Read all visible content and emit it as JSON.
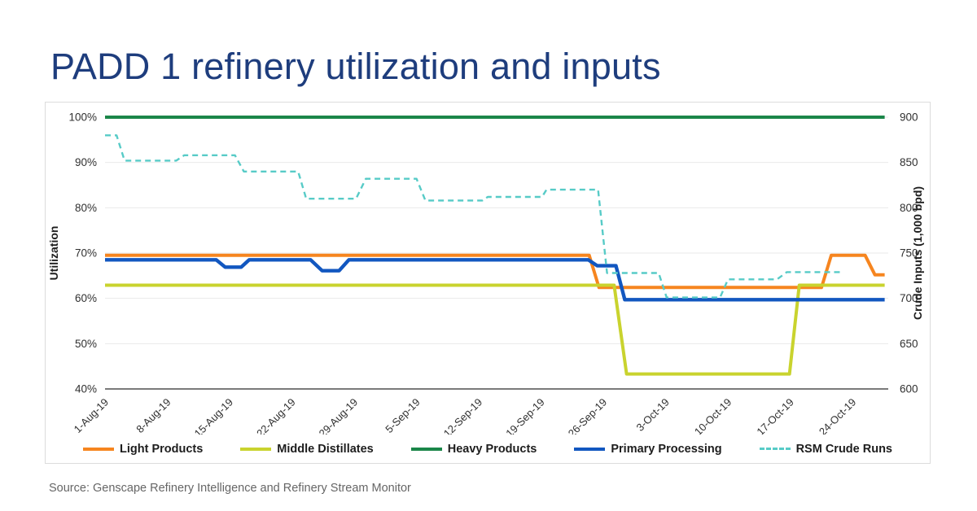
{
  "page": {
    "title": "PADD 1 refinery utilization and inputs",
    "source": "Source: Genscape Refinery Intelligence and Refinery Stream Monitor"
  },
  "colors": {
    "title": "#1E3D7D",
    "grid": "#EAEAEA",
    "axis_line": "#2B2B2B",
    "tick_text": "#303030",
    "axis_title_text": "#1d1d1d",
    "source_text": "#666666",
    "panel_border": "#DCDCDC"
  },
  "chart_data": {
    "type": "line",
    "title": "PADD 1 refinery utilization and inputs",
    "grid": "horizontal",
    "legend_position": "bottom",
    "x_unit": "days since 1-Aug-2019",
    "x_axis": {
      "xlim": [
        0,
        88
      ],
      "tick_days": [
        0,
        7,
        14,
        21,
        28,
        35,
        42,
        49,
        56,
        63,
        70,
        77,
        84
      ],
      "tick_labels": [
        "1-Aug-19",
        "8-Aug-19",
        "15-Aug-19",
        "22-Aug-19",
        "29-Aug-19",
        "5-Sep-19",
        "12-Sep-19",
        "19-Sep-19",
        "26-Sep-19",
        "3-Oct-19",
        "10-Oct-19",
        "17-Oct-19",
        "24-Oct-19"
      ]
    },
    "left_axis": {
      "label": "Utilization",
      "ylim": [
        40,
        100
      ],
      "tick_values": [
        100,
        90,
        80,
        70,
        60,
        50,
        40
      ],
      "tick_labels": [
        "100%",
        "90%",
        "80%",
        "70%",
        "60%",
        "50%",
        "40%"
      ]
    },
    "right_axis": {
      "label": "Crude Inputs (1,000 bpd)",
      "ylim": [
        600,
        900
      ],
      "tick_values": [
        900,
        850,
        800,
        750,
        700,
        650,
        600
      ],
      "tick_labels": [
        "900",
        "850",
        "800",
        "750",
        "700",
        "650",
        "600"
      ]
    },
    "series": [
      {
        "name": "Light Products",
        "axis": "left",
        "unit": "%",
        "color": "#F6851F",
        "style": "solid",
        "width": 4,
        "points": [
          [
            0,
            69.5
          ],
          [
            54.4,
            69.5
          ],
          [
            55.5,
            62.4
          ],
          [
            80.5,
            62.4
          ],
          [
            81.6,
            69.5
          ],
          [
            85.4,
            69.5
          ],
          [
            86.5,
            65.2
          ],
          [
            87.6,
            65.2
          ]
        ]
      },
      {
        "name": "Middle Distillates",
        "axis": "left",
        "unit": "%",
        "color": "#C9D32E",
        "style": "solid",
        "width": 4,
        "points": [
          [
            0,
            62.9
          ],
          [
            57.2,
            62.9
          ],
          [
            58.6,
            43.3
          ],
          [
            76.9,
            43.3
          ],
          [
            78.0,
            62.9
          ],
          [
            87.6,
            62.9
          ]
        ]
      },
      {
        "name": "Heavy Products",
        "axis": "left",
        "unit": "%",
        "color": "#1B8649",
        "style": "solid",
        "width": 4,
        "points": [
          [
            0,
            100
          ],
          [
            87.6,
            100
          ]
        ]
      },
      {
        "name": "Primary Processing",
        "axis": "left",
        "unit": "%",
        "color": "#1257C0",
        "style": "solid",
        "width": 4.4,
        "points": [
          [
            0,
            68.5
          ],
          [
            12.5,
            68.5
          ],
          [
            13.5,
            66.9
          ],
          [
            15.3,
            66.9
          ],
          [
            16.2,
            68.5
          ],
          [
            23.1,
            68.5
          ],
          [
            24.4,
            66.1
          ],
          [
            26.3,
            66.1
          ],
          [
            27.4,
            68.5
          ],
          [
            54.3,
            68.5
          ],
          [
            55.3,
            67.2
          ],
          [
            57.4,
            67.2
          ],
          [
            58.4,
            59.7
          ],
          [
            87.6,
            59.7
          ]
        ]
      },
      {
        "name": "RSM Crude Runs",
        "axis": "right",
        "unit": "1,000 bpd",
        "color": "#57CBC7",
        "style": "dashed",
        "width": 2.4,
        "points": [
          [
            0,
            880
          ],
          [
            1.3,
            880
          ],
          [
            2.2,
            852
          ],
          [
            8.0,
            852
          ],
          [
            8.9,
            858
          ],
          [
            14.6,
            858
          ],
          [
            15.6,
            840
          ],
          [
            21.7,
            840
          ],
          [
            22.6,
            810
          ],
          [
            28.2,
            810
          ],
          [
            29.3,
            832
          ],
          [
            35.0,
            832
          ],
          [
            36.0,
            808
          ],
          [
            42.4,
            808
          ],
          [
            43.0,
            812
          ],
          [
            49.1,
            812
          ],
          [
            49.6,
            820
          ],
          [
            55.4,
            820
          ],
          [
            56.4,
            728
          ],
          [
            62.2,
            728
          ],
          [
            63.1,
            701
          ],
          [
            69.1,
            701
          ],
          [
            70.0,
            721
          ],
          [
            75.5,
            721
          ],
          [
            76.6,
            729
          ],
          [
            82.6,
            729
          ]
        ]
      }
    ]
  }
}
